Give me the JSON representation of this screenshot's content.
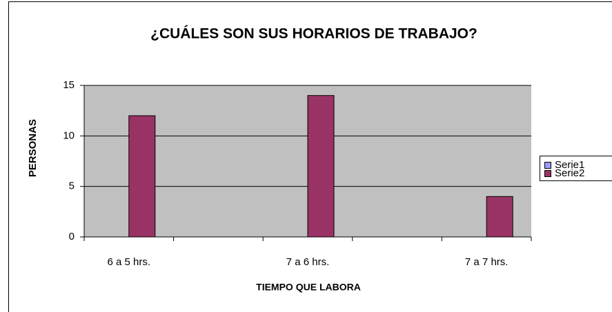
{
  "chart_data": {
    "type": "bar",
    "title": "¿CUÁLES SON SUS HORARIOS DE TRABAJO?",
    "x_label": "TIEMPO QUE LABORA",
    "y_label": "PERSONAS",
    "categories": [
      "6 a 5 hrs.",
      null,
      "7 a 6 hrs.",
      null,
      "7 a 7 hrs."
    ],
    "series": [
      {
        "name": "Serie1",
        "color": "#9999ff",
        "values": [
          null,
          null,
          null,
          null,
          null
        ]
      },
      {
        "name": "Serie2",
        "color": "#993366",
        "values": [
          12,
          null,
          14,
          null,
          4
        ]
      }
    ],
    "ylim": [
      0,
      15
    ],
    "yticks": [
      0,
      5,
      10,
      15
    ],
    "grid": true,
    "legend": "right"
  }
}
